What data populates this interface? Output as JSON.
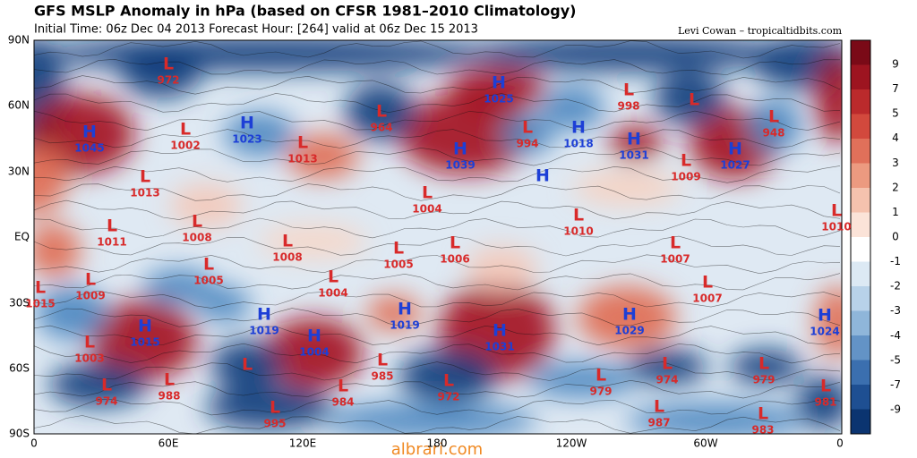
{
  "title": "GFS MSLP Anomaly in hPa (based on CFSR 1981–2010 Climatology)",
  "subtitle": "Initial Time: 06z Dec 04 2013 Forecast Hour: [264] valid at 06z Dec 15 2013",
  "credit": "Levi Cowan – tropicaltidbits.com",
  "lat_labels": [
    "90N",
    "60N",
    "30N",
    "EQ",
    "30S",
    "60S",
    "90S"
  ],
  "lon_labels": [
    "0",
    "60E",
    "120E",
    "180",
    "120W",
    "60W",
    "0"
  ],
  "colorbar_labels": [
    9,
    7,
    5,
    4,
    3,
    2,
    1,
    0,
    -1,
    -2,
    -3,
    -4,
    -5,
    -7,
    -9
  ],
  "systems": [
    {
      "type": "L",
      "value": 972
    },
    {
      "type": "H",
      "value": 1045
    },
    {
      "type": "L",
      "value": 1002
    },
    {
      "type": "H",
      "value": 1023
    },
    {
      "type": "L",
      "value": 1013
    },
    {
      "type": "L",
      "value": 1013
    },
    {
      "type": "L",
      "value": 964
    },
    {
      "type": "H",
      "value": 1025
    },
    {
      "type": "H",
      "value": 1039
    },
    {
      "type": "L",
      "value": 994
    },
    {
      "type": "H",
      "value": 1018
    },
    {
      "type": "L",
      "value": 1004
    },
    {
      "type": "H"
    },
    {
      "type": "L",
      "value": 998
    },
    {
      "type": "L"
    },
    {
      "type": "H",
      "value": 1031
    },
    {
      "type": "L",
      "value": 1009
    },
    {
      "type": "L",
      "value": 948
    },
    {
      "type": "H",
      "value": 1027
    },
    {
      "type": "L",
      "value": 1011
    },
    {
      "type": "L",
      "value": 1008
    },
    {
      "type": "L",
      "value": 1008
    },
    {
      "type": "L",
      "value": 1005
    },
    {
      "type": "L",
      "value": 1005
    },
    {
      "type": "L",
      "value": 1006
    },
    {
      "type": "L",
      "value": 1010
    },
    {
      "type": "L",
      "value": 1007
    },
    {
      "type": "L",
      "value": 1010
    },
    {
      "type": "L",
      "value": 1015
    },
    {
      "type": "L",
      "value": 1009
    },
    {
      "type": "L",
      "value": 1004
    },
    {
      "type": "L",
      "value": 1007
    },
    {
      "type": "H",
      "value": 1015
    },
    {
      "type": "H",
      "value": 1019
    },
    {
      "type": "H",
      "value": 1004
    },
    {
      "type": "H",
      "value": 1019
    },
    {
      "type": "H",
      "value": 1031
    },
    {
      "type": "H",
      "value": 1029
    },
    {
      "type": "H",
      "value": 1024
    },
    {
      "type": "L",
      "value": 1003
    },
    {
      "type": "L",
      "value": 974
    },
    {
      "type": "L",
      "value": 988
    },
    {
      "type": "L"
    },
    {
      "type": "L",
      "value": 984
    },
    {
      "type": "L",
      "value": 985
    },
    {
      "type": "L",
      "value": 972
    },
    {
      "type": "L",
      "value": 979
    },
    {
      "type": "L",
      "value": 974
    },
    {
      "type": "L",
      "value": 987
    },
    {
      "type": "L",
      "value": 979
    },
    {
      "type": "L",
      "value": 981
    },
    {
      "type": "L",
      "value": 995
    },
    {
      "type": "L",
      "value": 983
    }
  ],
  "watermark": "albrari.com"
}
